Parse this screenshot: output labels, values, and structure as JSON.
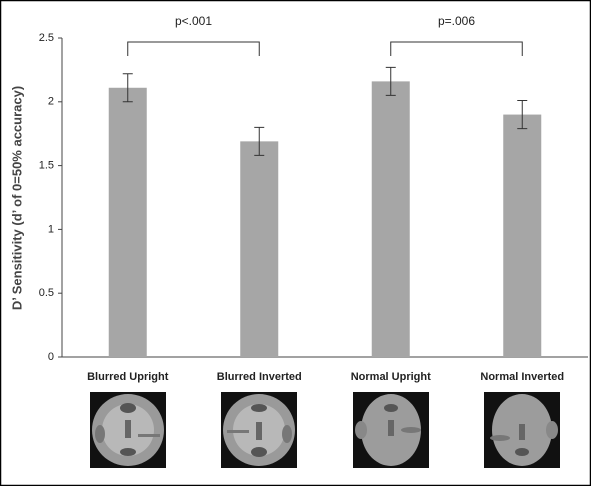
{
  "chart_data": {
    "type": "bar",
    "y_label": "D’ Sensitivity (d’ of 0=50% accuracy)",
    "categories": [
      "Blurred Upright",
      "Blurred Inverted",
      "Normal Upright",
      "Normal Inverted"
    ],
    "values": [
      2.11,
      1.69,
      2.16,
      1.9
    ],
    "errors": [
      0.11,
      0.11,
      0.11,
      0.11
    ],
    "color": "#a6a6a6",
    "ylim": [
      0,
      2.5
    ],
    "yticks": [
      0,
      0.5,
      1,
      1.5,
      2,
      2.5
    ],
    "annotations": [
      "p<.001",
      "p=.006"
    ]
  }
}
